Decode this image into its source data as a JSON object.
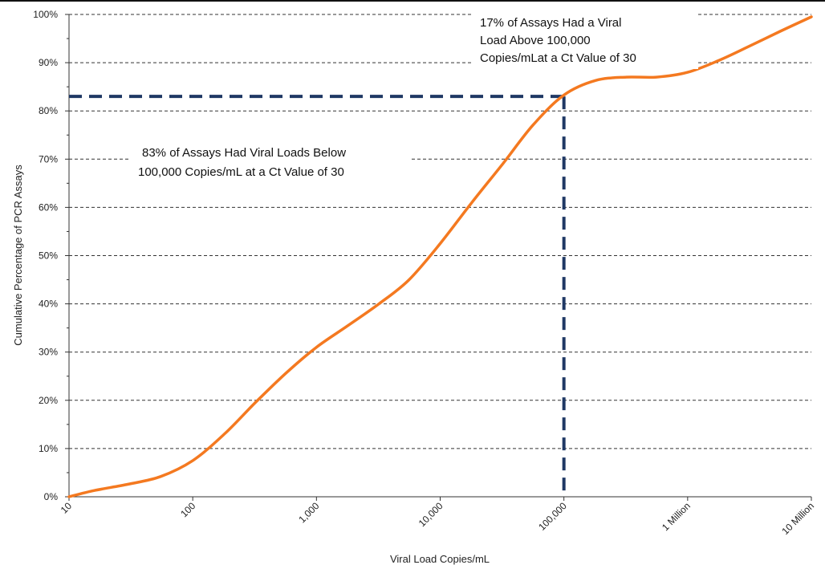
{
  "chart_data": {
    "type": "line",
    "xlabel": "Viral Load Copies/mL",
    "ylabel": "Cumulative Percentage of PCR Assays",
    "x_scale": "log10",
    "xlim": [
      10,
      10000000
    ],
    "ylim": [
      0,
      100
    ],
    "x_ticks": [
      {
        "value": 10,
        "label": "10"
      },
      {
        "value": 100,
        "label": "100"
      },
      {
        "value": 1000,
        "label": "1,000"
      },
      {
        "value": 10000,
        "label": "10,000"
      },
      {
        "value": 100000,
        "label": "100,000"
      },
      {
        "value": 1000000,
        "label": "1 Million"
      },
      {
        "value": 10000000,
        "label": "10 Million"
      }
    ],
    "y_ticks": [
      {
        "value": 0,
        "label": "0%"
      },
      {
        "value": 10,
        "label": "10%"
      },
      {
        "value": 20,
        "label": "20%"
      },
      {
        "value": 30,
        "label": "30%"
      },
      {
        "value": 40,
        "label": "40%"
      },
      {
        "value": 50,
        "label": "50%"
      },
      {
        "value": 60,
        "label": "60%"
      },
      {
        "value": 70,
        "label": "70%"
      },
      {
        "value": 80,
        "label": "80%"
      },
      {
        "value": 90,
        "label": "90%"
      },
      {
        "value": 100,
        "label": "100%"
      }
    ],
    "grid": "horizontal dashed",
    "series": [
      {
        "color": "#F47920",
        "points": [
          {
            "x": 10,
            "y": 0
          },
          {
            "x": 16,
            "y": 1.3
          },
          {
            "x": 30,
            "y": 2.6
          },
          {
            "x": 55,
            "y": 4.2
          },
          {
            "x": 100,
            "y": 7.5
          },
          {
            "x": 180,
            "y": 13
          },
          {
            "x": 320,
            "y": 19.5
          },
          {
            "x": 560,
            "y": 25.5
          },
          {
            "x": 1000,
            "y": 31
          },
          {
            "x": 1800,
            "y": 35.5
          },
          {
            "x": 3200,
            "y": 40
          },
          {
            "x": 5600,
            "y": 45
          },
          {
            "x": 10000,
            "y": 52.5
          },
          {
            "x": 18000,
            "y": 61
          },
          {
            "x": 32000,
            "y": 69
          },
          {
            "x": 56000,
            "y": 77
          },
          {
            "x": 100000,
            "y": 83.3
          },
          {
            "x": 180000,
            "y": 86.3
          },
          {
            "x": 320000,
            "y": 87
          },
          {
            "x": 560000,
            "y": 87
          },
          {
            "x": 1000000,
            "y": 88
          },
          {
            "x": 1800000,
            "y": 90.5
          },
          {
            "x": 3200000,
            "y": 93.5
          },
          {
            "x": 5600000,
            "y": 96.5
          },
          {
            "x": 10000000,
            "y": 99.5
          }
        ]
      }
    ],
    "reference_lines": {
      "color": "#1F3864",
      "horizontal_y": 83,
      "vertical_x": 100000
    },
    "annotations": [
      {
        "lines": [
          "17% of Assays Had a Viral",
          "Load Above 100,000",
          "Copies/mLat a Ct Value of 30"
        ]
      },
      {
        "lines": [
          "83% of Assays Had Viral Loads Below",
          "100,000 Copies/mL at a Ct Value of 30"
        ]
      }
    ]
  }
}
